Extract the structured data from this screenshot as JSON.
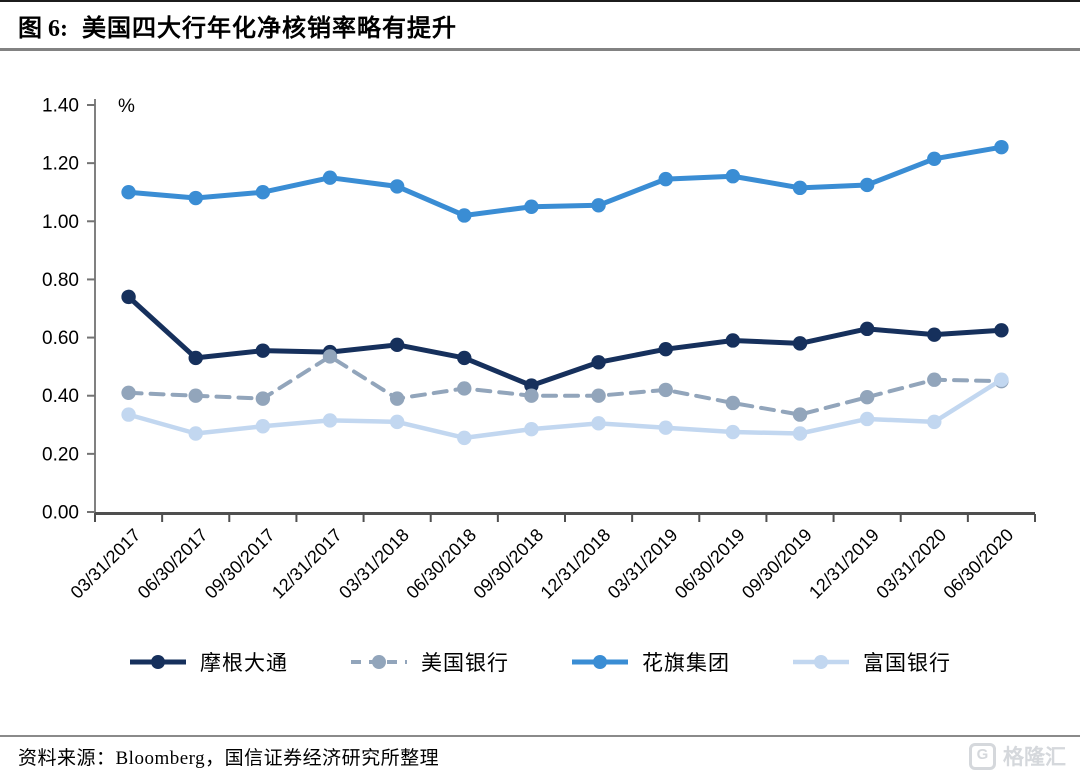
{
  "header": {
    "fig_label": "图 6:",
    "title": "美国四大行年化净核销率略有提升"
  },
  "chart_data": {
    "type": "line",
    "title": "美国四大行年化净核销率略有提升",
    "unit_label": "%",
    "categories": [
      "03/31/2017",
      "06/30/2017",
      "09/30/2017",
      "12/31/2017",
      "03/31/2018",
      "06/30/2018",
      "09/30/2018",
      "12/31/2018",
      "03/31/2019",
      "06/30/2019",
      "09/30/2019",
      "12/31/2019",
      "03/31/2020",
      "06/30/2020"
    ],
    "series": [
      {
        "name": "摩根大通",
        "color": "#16305C",
        "dash": false,
        "line_width": 5,
        "values": [
          0.74,
          0.53,
          0.555,
          0.55,
          0.575,
          0.53,
          0.435,
          0.515,
          0.56,
          0.59,
          0.58,
          0.63,
          0.61,
          0.625
        ]
      },
      {
        "name": "美国银行",
        "color": "#92A5BB",
        "dash": true,
        "line_width": 4,
        "values": [
          0.41,
          0.4,
          0.39,
          0.535,
          0.39,
          0.425,
          0.4,
          0.4,
          0.42,
          0.375,
          0.335,
          0.395,
          0.455,
          0.45
        ]
      },
      {
        "name": "花旗集团",
        "color": "#3A8DD4",
        "dash": false,
        "line_width": 5,
        "values": [
          1.1,
          1.08,
          1.1,
          1.15,
          1.12,
          1.02,
          1.05,
          1.055,
          1.145,
          1.155,
          1.115,
          1.125,
          1.215,
          1.255
        ]
      },
      {
        "name": "富国银行",
        "color": "#C2D7F0",
        "dash": false,
        "line_width": 4.5,
        "values": [
          0.335,
          0.27,
          0.295,
          0.315,
          0.31,
          0.255,
          0.285,
          0.305,
          0.29,
          0.275,
          0.27,
          0.32,
          0.31,
          0.455
        ]
      }
    ],
    "ylim": [
      0,
      1.4
    ],
    "ytick_step": 0.2,
    "ytick_labels": [
      "0.00",
      "0.20",
      "0.40",
      "0.60",
      "0.80",
      "1.00",
      "1.20",
      "1.40"
    ],
    "grid": false,
    "legend_position": "bottom",
    "x_label_rotation": -45
  },
  "footer": {
    "source": "资料来源：Bloomberg，国信证券经济研究所整理",
    "watermark_icon": "G",
    "watermark": "格隆汇"
  },
  "colors": {
    "y_axis": "#808080",
    "x_axis": "#4f4f4f",
    "tick": "#737373",
    "top_rule": "#1c1c1c",
    "header_rule": "#828282",
    "footer_rule": "#8a8a8a",
    "watermark": "#d5d8dc",
    "background": "#ffffff"
  }
}
